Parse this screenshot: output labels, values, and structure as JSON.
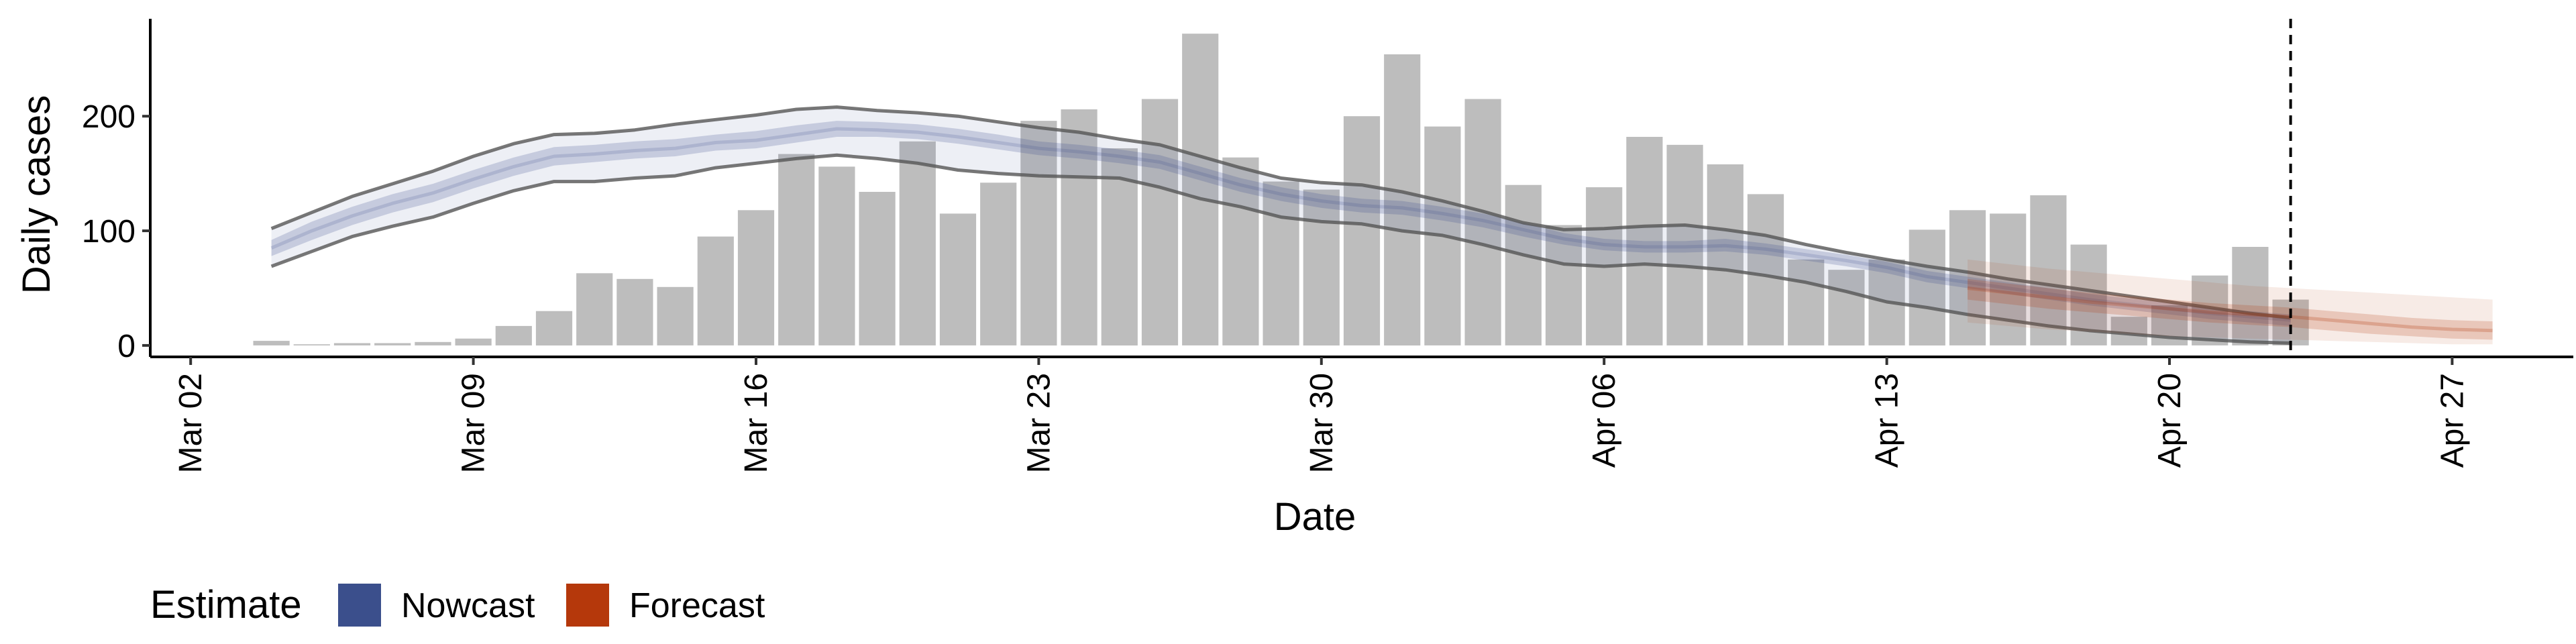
{
  "chart_data": {
    "type": "bar",
    "xlabel": "Date",
    "ylabel": "Daily cases",
    "x_range": [
      "2020-03-01",
      "2020-04-30"
    ],
    "ylim": [
      -10,
      285
    ],
    "y_ticks": [
      0,
      100,
      200
    ],
    "x_ticks": [
      {
        "date": "2020-03-02",
        "label": "Mar 02"
      },
      {
        "date": "2020-03-09",
        "label": "Mar 09"
      },
      {
        "date": "2020-03-16",
        "label": "Mar 16"
      },
      {
        "date": "2020-03-23",
        "label": "Mar 23"
      },
      {
        "date": "2020-03-30",
        "label": "Mar 30"
      },
      {
        "date": "2020-04-06",
        "label": "Apr 06"
      },
      {
        "date": "2020-04-13",
        "label": "Apr 13"
      },
      {
        "date": "2020-04-20",
        "label": "Apr 20"
      },
      {
        "date": "2020-04-27",
        "label": "Apr 27"
      }
    ],
    "cases": {
      "dates": [
        "2020-03-04",
        "2020-03-05",
        "2020-03-06",
        "2020-03-07",
        "2020-03-08",
        "2020-03-09",
        "2020-03-10",
        "2020-03-11",
        "2020-03-12",
        "2020-03-13",
        "2020-03-14",
        "2020-03-15",
        "2020-03-16",
        "2020-03-17",
        "2020-03-18",
        "2020-03-19",
        "2020-03-20",
        "2020-03-21",
        "2020-03-22",
        "2020-03-23",
        "2020-03-24",
        "2020-03-25",
        "2020-03-26",
        "2020-03-27",
        "2020-03-28",
        "2020-03-29",
        "2020-03-30",
        "2020-03-31",
        "2020-04-01",
        "2020-04-02",
        "2020-04-03",
        "2020-04-04",
        "2020-04-05",
        "2020-04-06",
        "2020-04-07",
        "2020-04-08",
        "2020-04-09",
        "2020-04-10",
        "2020-04-11",
        "2020-04-12",
        "2020-04-13",
        "2020-04-14",
        "2020-04-15",
        "2020-04-16",
        "2020-04-17",
        "2020-04-18",
        "2020-04-19",
        "2020-04-20",
        "2020-04-21",
        "2020-04-22",
        "2020-04-23"
      ],
      "values": [
        4,
        1,
        2,
        2,
        3,
        6,
        17,
        30,
        63,
        58,
        51,
        95,
        118,
        167,
        156,
        134,
        178,
        115,
        142,
        196,
        206,
        172,
        215,
        272,
        164,
        143,
        136,
        200,
        254,
        191,
        215,
        140,
        105,
        138,
        182,
        175,
        158,
        132,
        75,
        66,
        75,
        101,
        118,
        115,
        131,
        88,
        25,
        35,
        61,
        86,
        40
      ]
    },
    "nowcast": {
      "name": "Nowcast",
      "color": "#3B4F8C",
      "dates": [
        "2020-03-04",
        "2020-03-05",
        "2020-03-06",
        "2020-03-07",
        "2020-03-08",
        "2020-03-09",
        "2020-03-10",
        "2020-03-11",
        "2020-03-12",
        "2020-03-13",
        "2020-03-14",
        "2020-03-15",
        "2020-03-16",
        "2020-03-17",
        "2020-03-18",
        "2020-03-19",
        "2020-03-20",
        "2020-03-21",
        "2020-03-22",
        "2020-03-23",
        "2020-03-24",
        "2020-03-25",
        "2020-03-26",
        "2020-03-27",
        "2020-03-28",
        "2020-03-29",
        "2020-03-30",
        "2020-03-31",
        "2020-04-01",
        "2020-04-02",
        "2020-04-03",
        "2020-04-04",
        "2020-04-05",
        "2020-04-06",
        "2020-04-07",
        "2020-04-08",
        "2020-04-09",
        "2020-04-10",
        "2020-04-11",
        "2020-04-12",
        "2020-04-13",
        "2020-04-14",
        "2020-04-15",
        "2020-04-16",
        "2020-04-17",
        "2020-04-18",
        "2020-04-19",
        "2020-04-20",
        "2020-04-21",
        "2020-04-22",
        "2020-04-23"
      ],
      "median": [
        85,
        100,
        113,
        124,
        133,
        145,
        156,
        165,
        167,
        170,
        172,
        177,
        179,
        184,
        189,
        188,
        186,
        182,
        177,
        172,
        169,
        165,
        160,
        150,
        140,
        132,
        126,
        122,
        120,
        115,
        109,
        101,
        93,
        88,
        86,
        86,
        87,
        84,
        79,
        74,
        68,
        60,
        55,
        50,
        45,
        40,
        36,
        32,
        28,
        25,
        22
      ],
      "lower_50": [
        78,
        92,
        105,
        116,
        125,
        137,
        148,
        157,
        160,
        163,
        165,
        170,
        172,
        177,
        182,
        182,
        180,
        176,
        171,
        166,
        163,
        159,
        154,
        144,
        134,
        126,
        120,
        116,
        114,
        109,
        103,
        95,
        88,
        83,
        81,
        81,
        82,
        79,
        74,
        69,
        63,
        55,
        50,
        45,
        40,
        35,
        31,
        27,
        23,
        20,
        17
      ],
      "upper_50": [
        92,
        108,
        121,
        132,
        141,
        153,
        164,
        173,
        175,
        178,
        180,
        184,
        187,
        192,
        196,
        195,
        193,
        189,
        184,
        178,
        175,
        171,
        166,
        156,
        146,
        138,
        132,
        128,
        126,
        121,
        115,
        107,
        98,
        93,
        91,
        91,
        93,
        89,
        84,
        79,
        73,
        65,
        60,
        55,
        50,
        45,
        41,
        37,
        33,
        30,
        27
      ],
      "lower_90": [
        69,
        82,
        95,
        104,
        112,
        124,
        135,
        143,
        143,
        146,
        148,
        155,
        159,
        163,
        166,
        163,
        159,
        153,
        150,
        148,
        147,
        146,
        138,
        128,
        121,
        112,
        108,
        106,
        100,
        96,
        88,
        79,
        71,
        69,
        71,
        69,
        66,
        61,
        55,
        47,
        38,
        33,
        27,
        22,
        17,
        13,
        10,
        7,
        5,
        3,
        2
      ],
      "upper_90": [
        102,
        116,
        130,
        141,
        152,
        165,
        176,
        184,
        185,
        188,
        193,
        197,
        201,
        206,
        208,
        205,
        203,
        200,
        195,
        190,
        186,
        180,
        175,
        165,
        155,
        146,
        142,
        140,
        134,
        126,
        117,
        107,
        101,
        102,
        104,
        105,
        101,
        96,
        88,
        81,
        75,
        69,
        64,
        58,
        53,
        48,
        43,
        38,
        33,
        28,
        24
      ]
    },
    "forecast": {
      "name": "Forecast",
      "color": "#B5380B",
      "dates": [
        "2020-04-15",
        "2020-04-16",
        "2020-04-17",
        "2020-04-18",
        "2020-04-19",
        "2020-04-20",
        "2020-04-21",
        "2020-04-22",
        "2020-04-23",
        "2020-04-24",
        "2020-04-25",
        "2020-04-26",
        "2020-04-27",
        "2020-04-28"
      ],
      "median": [
        50,
        46,
        42,
        38,
        35,
        32,
        29,
        27,
        25,
        22,
        19,
        16,
        14,
        13
      ],
      "lower_50": [
        40,
        36,
        32,
        29,
        26,
        23,
        20,
        18,
        16,
        13,
        10,
        8,
        6,
        5
      ],
      "upper_50": [
        58,
        54,
        50,
        46,
        43,
        40,
        37,
        35,
        33,
        30,
        27,
        24,
        22,
        21
      ],
      "lower_90": [
        20,
        17,
        14,
        12,
        10,
        8,
        7,
        6,
        5,
        4,
        3,
        2,
        1,
        1
      ],
      "upper_90": [
        75,
        71,
        67,
        64,
        61,
        58,
        55,
        52,
        50,
        48,
        46,
        44,
        42,
        40
      ]
    },
    "cutoff_date": "2020-04-23",
    "legend": {
      "title": "Estimate",
      "position": "bottom-left",
      "items": [
        {
          "name": "Nowcast",
          "color": "#3B4F8C"
        },
        {
          "name": "Forecast",
          "color": "#B5380B"
        }
      ]
    },
    "grid": false
  }
}
